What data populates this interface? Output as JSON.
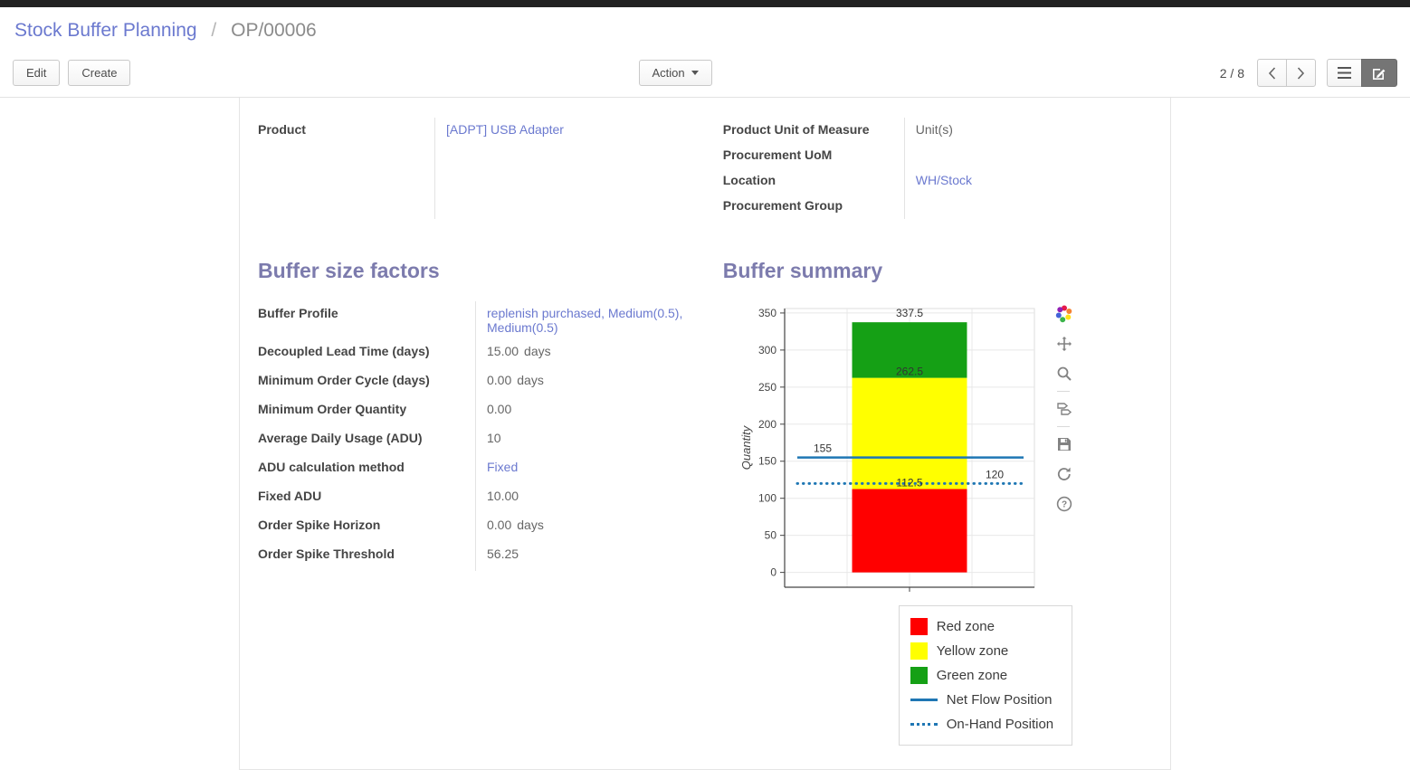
{
  "colors": {
    "heading": "#7C7BAD",
    "link": "#6B79CF",
    "active_view_bg": "#757575",
    "topbar": "#222222"
  },
  "breadcrumb": {
    "parent": "Stock Buffer Planning",
    "separator": "/",
    "current": "OP/00006"
  },
  "toolbar": {
    "edit": "Edit",
    "create": "Create",
    "action": "Action",
    "pager": "2 / 8"
  },
  "record": {
    "left_fields": [
      {
        "label": "Product",
        "value": "[ADPT] USB Adapter"
      }
    ],
    "right_fields": [
      {
        "label": "Product Unit of Measure",
        "value": "Unit(s)"
      },
      {
        "label": "Procurement UoM",
        "value": ""
      },
      {
        "label": "Location",
        "value": "WH/Stock"
      },
      {
        "label": "Procurement Group",
        "value": ""
      }
    ]
  },
  "factors": {
    "title": "Buffer size factors",
    "fields": [
      {
        "label": "Buffer Profile",
        "value": "replenish purchased, Medium(0.5), Medium(0.5)"
      },
      {
        "label": "Decoupled Lead Time (days)",
        "value": "15.00",
        "suffix": "days"
      },
      {
        "label": "Minimum Order Cycle (days)",
        "value": "0.00",
        "suffix": "days"
      },
      {
        "label": "Minimum Order Quantity",
        "value": "0.00"
      },
      {
        "label": "Average Daily Usage (ADU)",
        "value": "10"
      },
      {
        "label": "ADU calculation method",
        "value": "Fixed"
      },
      {
        "label": "Fixed ADU",
        "value": "10.00"
      },
      {
        "label": "Order Spike Horizon",
        "value": "0.00",
        "suffix": "days"
      },
      {
        "label": "Order Spike Threshold",
        "value": "56.25"
      }
    ]
  },
  "summary": {
    "title": "Buffer summary"
  },
  "chart_data": {
    "type": "bar",
    "title": "",
    "ylabel": "Quantity",
    "ylim": [
      0,
      350
    ],
    "yticks": [
      0,
      50,
      100,
      150,
      200,
      250,
      300,
      350
    ],
    "grid": true,
    "zones": [
      {
        "name": "Red zone",
        "from": 0,
        "to": 112.5,
        "color": "#FF0000"
      },
      {
        "name": "Yellow zone",
        "from": 112.5,
        "to": 262.5,
        "color": "#FFFF00"
      },
      {
        "name": "Green zone",
        "from": 262.5,
        "to": 337.5,
        "color": "#15A015"
      }
    ],
    "lines": [
      {
        "name": "Net Flow Position",
        "value": 155,
        "style": "solid",
        "color": "#1F77B4"
      },
      {
        "name": "On-Hand Position",
        "value": 120,
        "style": "dotted",
        "color": "#1F77B4"
      }
    ],
    "annotations": [
      {
        "text": "337.5",
        "y": 337.5,
        "pos": "top-center"
      },
      {
        "text": "262.5",
        "y": 262.5,
        "pos": "center"
      },
      {
        "text": "155",
        "y": 155,
        "pos": "left"
      },
      {
        "text": "112.5",
        "y": 112.5,
        "pos": "center"
      },
      {
        "text": "120",
        "y": 120,
        "pos": "right"
      }
    ],
    "legend": [
      "Red zone",
      "Yellow zone",
      "Green zone",
      "Net Flow Position",
      "On-Hand Position"
    ],
    "legend_position": "bottom-right",
    "modebar_icons": [
      "plotly-logo-icon",
      "pan-icon",
      "zoom-icon",
      "hover-compare-icon",
      "save-icon",
      "reset-axes-icon",
      "help-icon"
    ]
  }
}
